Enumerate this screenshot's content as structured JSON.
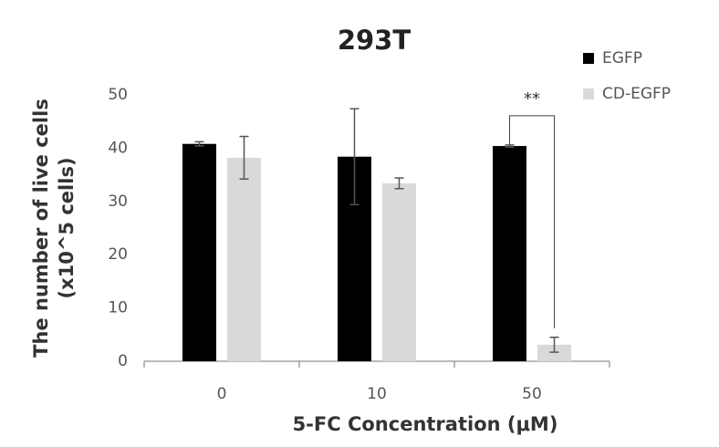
{
  "chart_data": {
    "type": "bar",
    "title": "293T",
    "x_label": "5-FC Concentration (μM)",
    "y_label": [
      "The number of live cells",
      "(x10^5 cells)"
    ],
    "categories": [
      "0",
      "10",
      "50"
    ],
    "series": [
      {
        "name": "EGFP",
        "color": "#000000",
        "values": [
          40.8,
          38.4,
          40.4
        ],
        "errors": [
          0.4,
          9,
          0.2
        ]
      },
      {
        "name": "CD-EGFP",
        "color": "#d9d9d9",
        "values": [
          38.2,
          33.4,
          3.1
        ],
        "errors": [
          4,
          1,
          1.4
        ]
      }
    ],
    "error_color": "#555555",
    "annotation": {
      "text": "**",
      "category": 2
    },
    "ylim": [
      0,
      50
    ],
    "yticks": [
      0,
      10,
      20,
      30,
      40,
      50
    ],
    "legend": "right",
    "grid": false
  }
}
